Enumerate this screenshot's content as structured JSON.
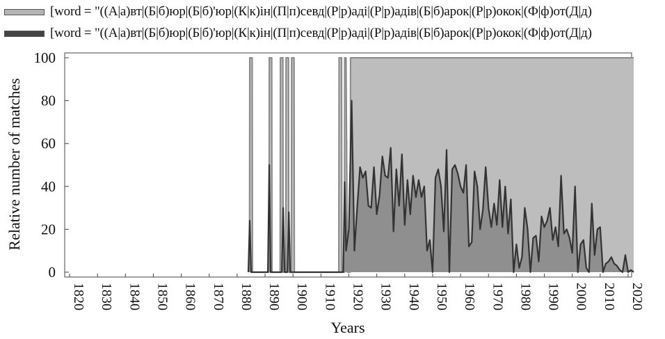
{
  "chart_data": {
    "type": "area",
    "xlabel": "Years",
    "ylabel": "Relative number of matches",
    "xlim": [
      1815,
      2022
    ],
    "ylim": [
      0,
      100
    ],
    "x_ticks": [
      1820,
      1830,
      1840,
      1850,
      1860,
      1870,
      1880,
      1890,
      1900,
      1910,
      1920,
      1930,
      1940,
      1950,
      1960,
      1970,
      1980,
      1990,
      2000,
      2010,
      2020
    ],
    "y_ticks": [
      0,
      20,
      40,
      60,
      80,
      100
    ],
    "legend_position": "top",
    "series": [
      {
        "name": "[word = \"((А|а)вт|(Б|б)юр|(Б|б)'юр|(К|к)ін|(П|п)севд|(Р|р)аді|(Р|р)адів|(Б|б)арок|(Р|р)окок|(Ф|ф)от(Д|д)",
        "color": "#bdbdbd",
        "line_color": "#8a8a8a",
        "points": [
          [
            1884.4,
            0
          ],
          [
            1884.5,
            100
          ],
          [
            1885.4,
            100
          ],
          [
            1885.5,
            0
          ],
          [
            1891.4,
            0
          ],
          [
            1891.5,
            100
          ],
          [
            1892.4,
            100
          ],
          [
            1892.5,
            0
          ],
          [
            1895.4,
            0
          ],
          [
            1895.5,
            100
          ],
          [
            1896.4,
            100
          ],
          [
            1896.5,
            0
          ],
          [
            1897.4,
            0
          ],
          [
            1897.5,
            100
          ],
          [
            1898.4,
            100
          ],
          [
            1898.5,
            0
          ],
          [
            1899.4,
            0
          ],
          [
            1899.5,
            100
          ],
          [
            1900.4,
            100
          ],
          [
            1900.5,
            0
          ],
          [
            1916.4,
            0
          ],
          [
            1916.5,
            100
          ],
          [
            1917.4,
            100
          ],
          [
            1917.5,
            0
          ],
          [
            1918.4,
            0
          ],
          [
            1918.5,
            100
          ],
          [
            1919,
            100
          ],
          [
            1919.5,
            0
          ],
          [
            1920.5,
            0
          ],
          [
            1920.6,
            100
          ],
          [
            2022,
            100
          ]
        ]
      },
      {
        "name": "[word = \"((А|а)вт|(Б|б)юр|(Б|б)'юр|(К|к)ін|(П|п)севд|(Р|р)аді|(Р|р)адів|(Б|б)арок|(Р|р)окок|(Ф|ф)от(Д|д)",
        "color": "#8f8f8f",
        "line_color": "#333333",
        "points": [
          [
            1884,
            0
          ],
          [
            1884.5,
            24
          ],
          [
            1885,
            0
          ],
          [
            1891,
            0
          ],
          [
            1891.5,
            50
          ],
          [
            1892,
            0
          ],
          [
            1896,
            0
          ],
          [
            1896.5,
            30
          ],
          [
            1897,
            0
          ],
          [
            1898,
            0
          ],
          [
            1898.5,
            28
          ],
          [
            1899,
            0
          ],
          [
            1918,
            0
          ],
          [
            1918.5,
            42
          ],
          [
            1919,
            10
          ],
          [
            1920,
            20
          ],
          [
            1921,
            80
          ],
          [
            1922,
            10
          ],
          [
            1923,
            30
          ],
          [
            1924,
            49
          ],
          [
            1925,
            44
          ],
          [
            1926,
            47
          ],
          [
            1927,
            31
          ],
          [
            1928,
            30
          ],
          [
            1929,
            49
          ],
          [
            1930,
            27
          ],
          [
            1931,
            36
          ],
          [
            1932,
            54
          ],
          [
            1933,
            45
          ],
          [
            1934,
            44
          ],
          [
            1935,
            58
          ],
          [
            1936,
            19
          ],
          [
            1937,
            48
          ],
          [
            1938,
            31
          ],
          [
            1939,
            55
          ],
          [
            1940,
            22
          ],
          [
            1941,
            43
          ],
          [
            1942,
            27
          ],
          [
            1943,
            45
          ],
          [
            1944,
            35
          ],
          [
            1945,
            43
          ],
          [
            1946,
            35
          ],
          [
            1947,
            40
          ],
          [
            1948,
            10
          ],
          [
            1949,
            15
          ],
          [
            1950,
            0
          ],
          [
            1951,
            44
          ],
          [
            1952,
            48
          ],
          [
            1953,
            40
          ],
          [
            1954,
            19
          ],
          [
            1955,
            57
          ],
          [
            1956,
            0
          ],
          [
            1957,
            48
          ],
          [
            1958,
            50
          ],
          [
            1959,
            46
          ],
          [
            1960,
            40
          ],
          [
            1961,
            37
          ],
          [
            1962,
            50
          ],
          [
            1963,
            12
          ],
          [
            1964,
            14
          ],
          [
            1965,
            47
          ],
          [
            1966,
            40
          ],
          [
            1967,
            20
          ],
          [
            1968,
            29
          ],
          [
            1969,
            49
          ],
          [
            1970,
            30
          ],
          [
            1971,
            21
          ],
          [
            1972,
            32
          ],
          [
            1973,
            22
          ],
          [
            1974,
            43
          ],
          [
            1975,
            21
          ],
          [
            1976,
            40
          ],
          [
            1977,
            18
          ],
          [
            1978,
            34
          ],
          [
            1979,
            0
          ],
          [
            1980,
            13
          ],
          [
            1981,
            2
          ],
          [
            1982,
            7
          ],
          [
            1983,
            30
          ],
          [
            1984,
            20
          ],
          [
            1985,
            0
          ],
          [
            1986,
            16
          ],
          [
            1987,
            17
          ],
          [
            1988,
            5
          ],
          [
            1989,
            26
          ],
          [
            1990,
            21
          ],
          [
            1991,
            24
          ],
          [
            1992,
            30
          ],
          [
            1993,
            15
          ],
          [
            1994,
            21
          ],
          [
            1995,
            12
          ],
          [
            1996,
            45
          ],
          [
            1997,
            18
          ],
          [
            1998,
            20
          ],
          [
            1999,
            16
          ],
          [
            2000,
            9
          ],
          [
            2001,
            40
          ],
          [
            2002,
            0
          ],
          [
            2003,
            13
          ],
          [
            2004,
            15
          ],
          [
            2005,
            2
          ],
          [
            2006,
            0
          ],
          [
            2007,
            32
          ],
          [
            2008,
            8
          ],
          [
            2009,
            20
          ],
          [
            2010,
            21
          ],
          [
            2011,
            0
          ],
          [
            2012,
            4
          ],
          [
            2013,
            5
          ],
          [
            2014,
            7
          ],
          [
            2015,
            4
          ],
          [
            2016,
            3
          ],
          [
            2017,
            1
          ],
          [
            2018,
            0
          ],
          [
            2019,
            8
          ],
          [
            2020,
            0
          ],
          [
            2021,
            1
          ],
          [
            2022,
            0
          ]
        ]
      }
    ]
  }
}
